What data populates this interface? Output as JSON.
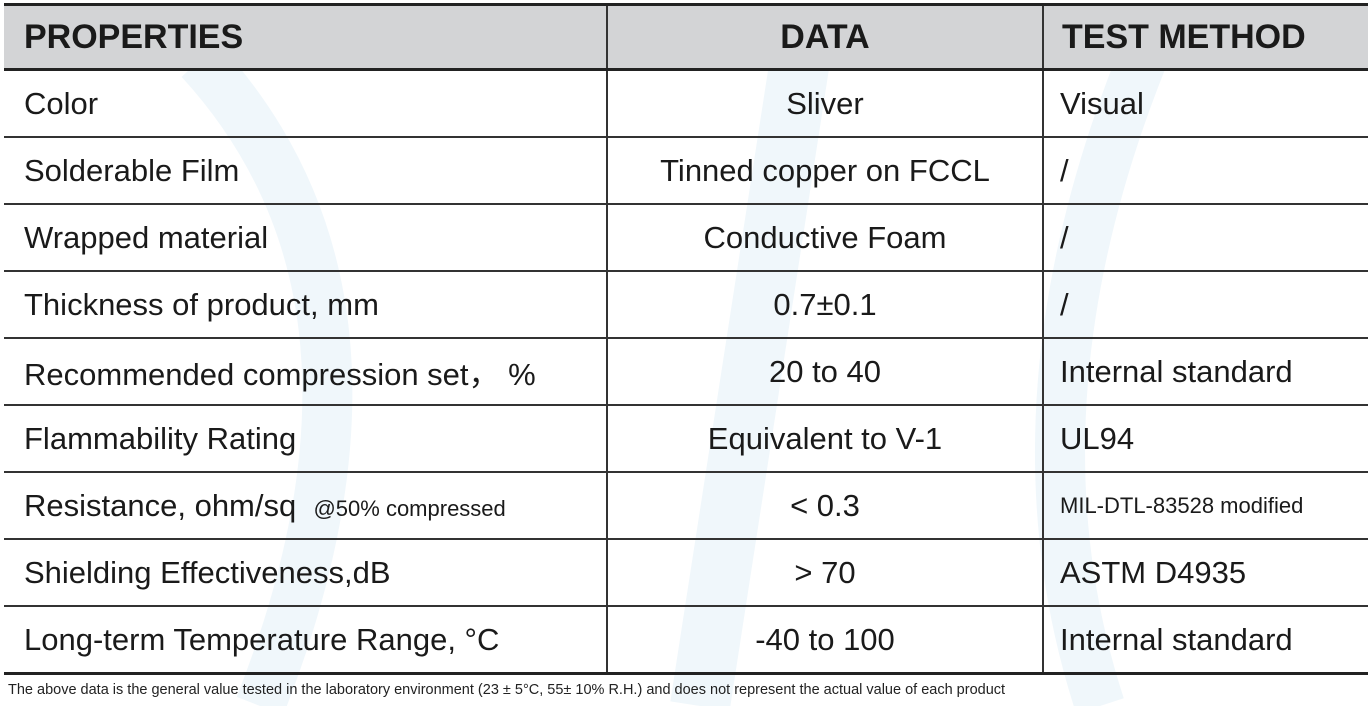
{
  "table": {
    "headers": [
      "PROPERTIES",
      "DATA",
      "TEST METHOD"
    ],
    "rows": [
      {
        "property": "Color",
        "note": "",
        "data": "Sliver",
        "method": "Visual"
      },
      {
        "property": "Solderable Film",
        "note": "",
        "data": "Tinned copper on FCCL",
        "method": "/"
      },
      {
        "property": "Wrapped material",
        "note": "",
        "data": "Conductive Foam",
        "method": "/"
      },
      {
        "property": "Thickness of product, mm",
        "note": "",
        "data": "0.7±0.1",
        "method": "/"
      },
      {
        "property": "Recommended compression set， %",
        "note": "",
        "data": "20 to 40",
        "method": "Internal standard"
      },
      {
        "property": "Flammability Rating",
        "note": "",
        "data": "Equivalent to V-1",
        "method": "UL94"
      },
      {
        "property": "Resistance, ohm/sq",
        "note": "@50% compressed",
        "data": "< 0.3",
        "method": "MIL-DTL-83528 modified"
      },
      {
        "property": "Shielding Effectiveness,dB",
        "note": "",
        "data": "> 70",
        "method": " ASTM D4935"
      },
      {
        "property": "Long-term Temperature Range, °C",
        "note": "",
        "data": "-40 to 100",
        "method": "Internal standard"
      }
    ]
  },
  "footnote": "The above data is the general value tested in the laboratory environment (23 ± 5°C, 55± 10% R.H.) and does not represent the actual value of each product",
  "colors": {
    "header_bg": "#d3d4d6",
    "watermark": "#eef6fb"
  }
}
